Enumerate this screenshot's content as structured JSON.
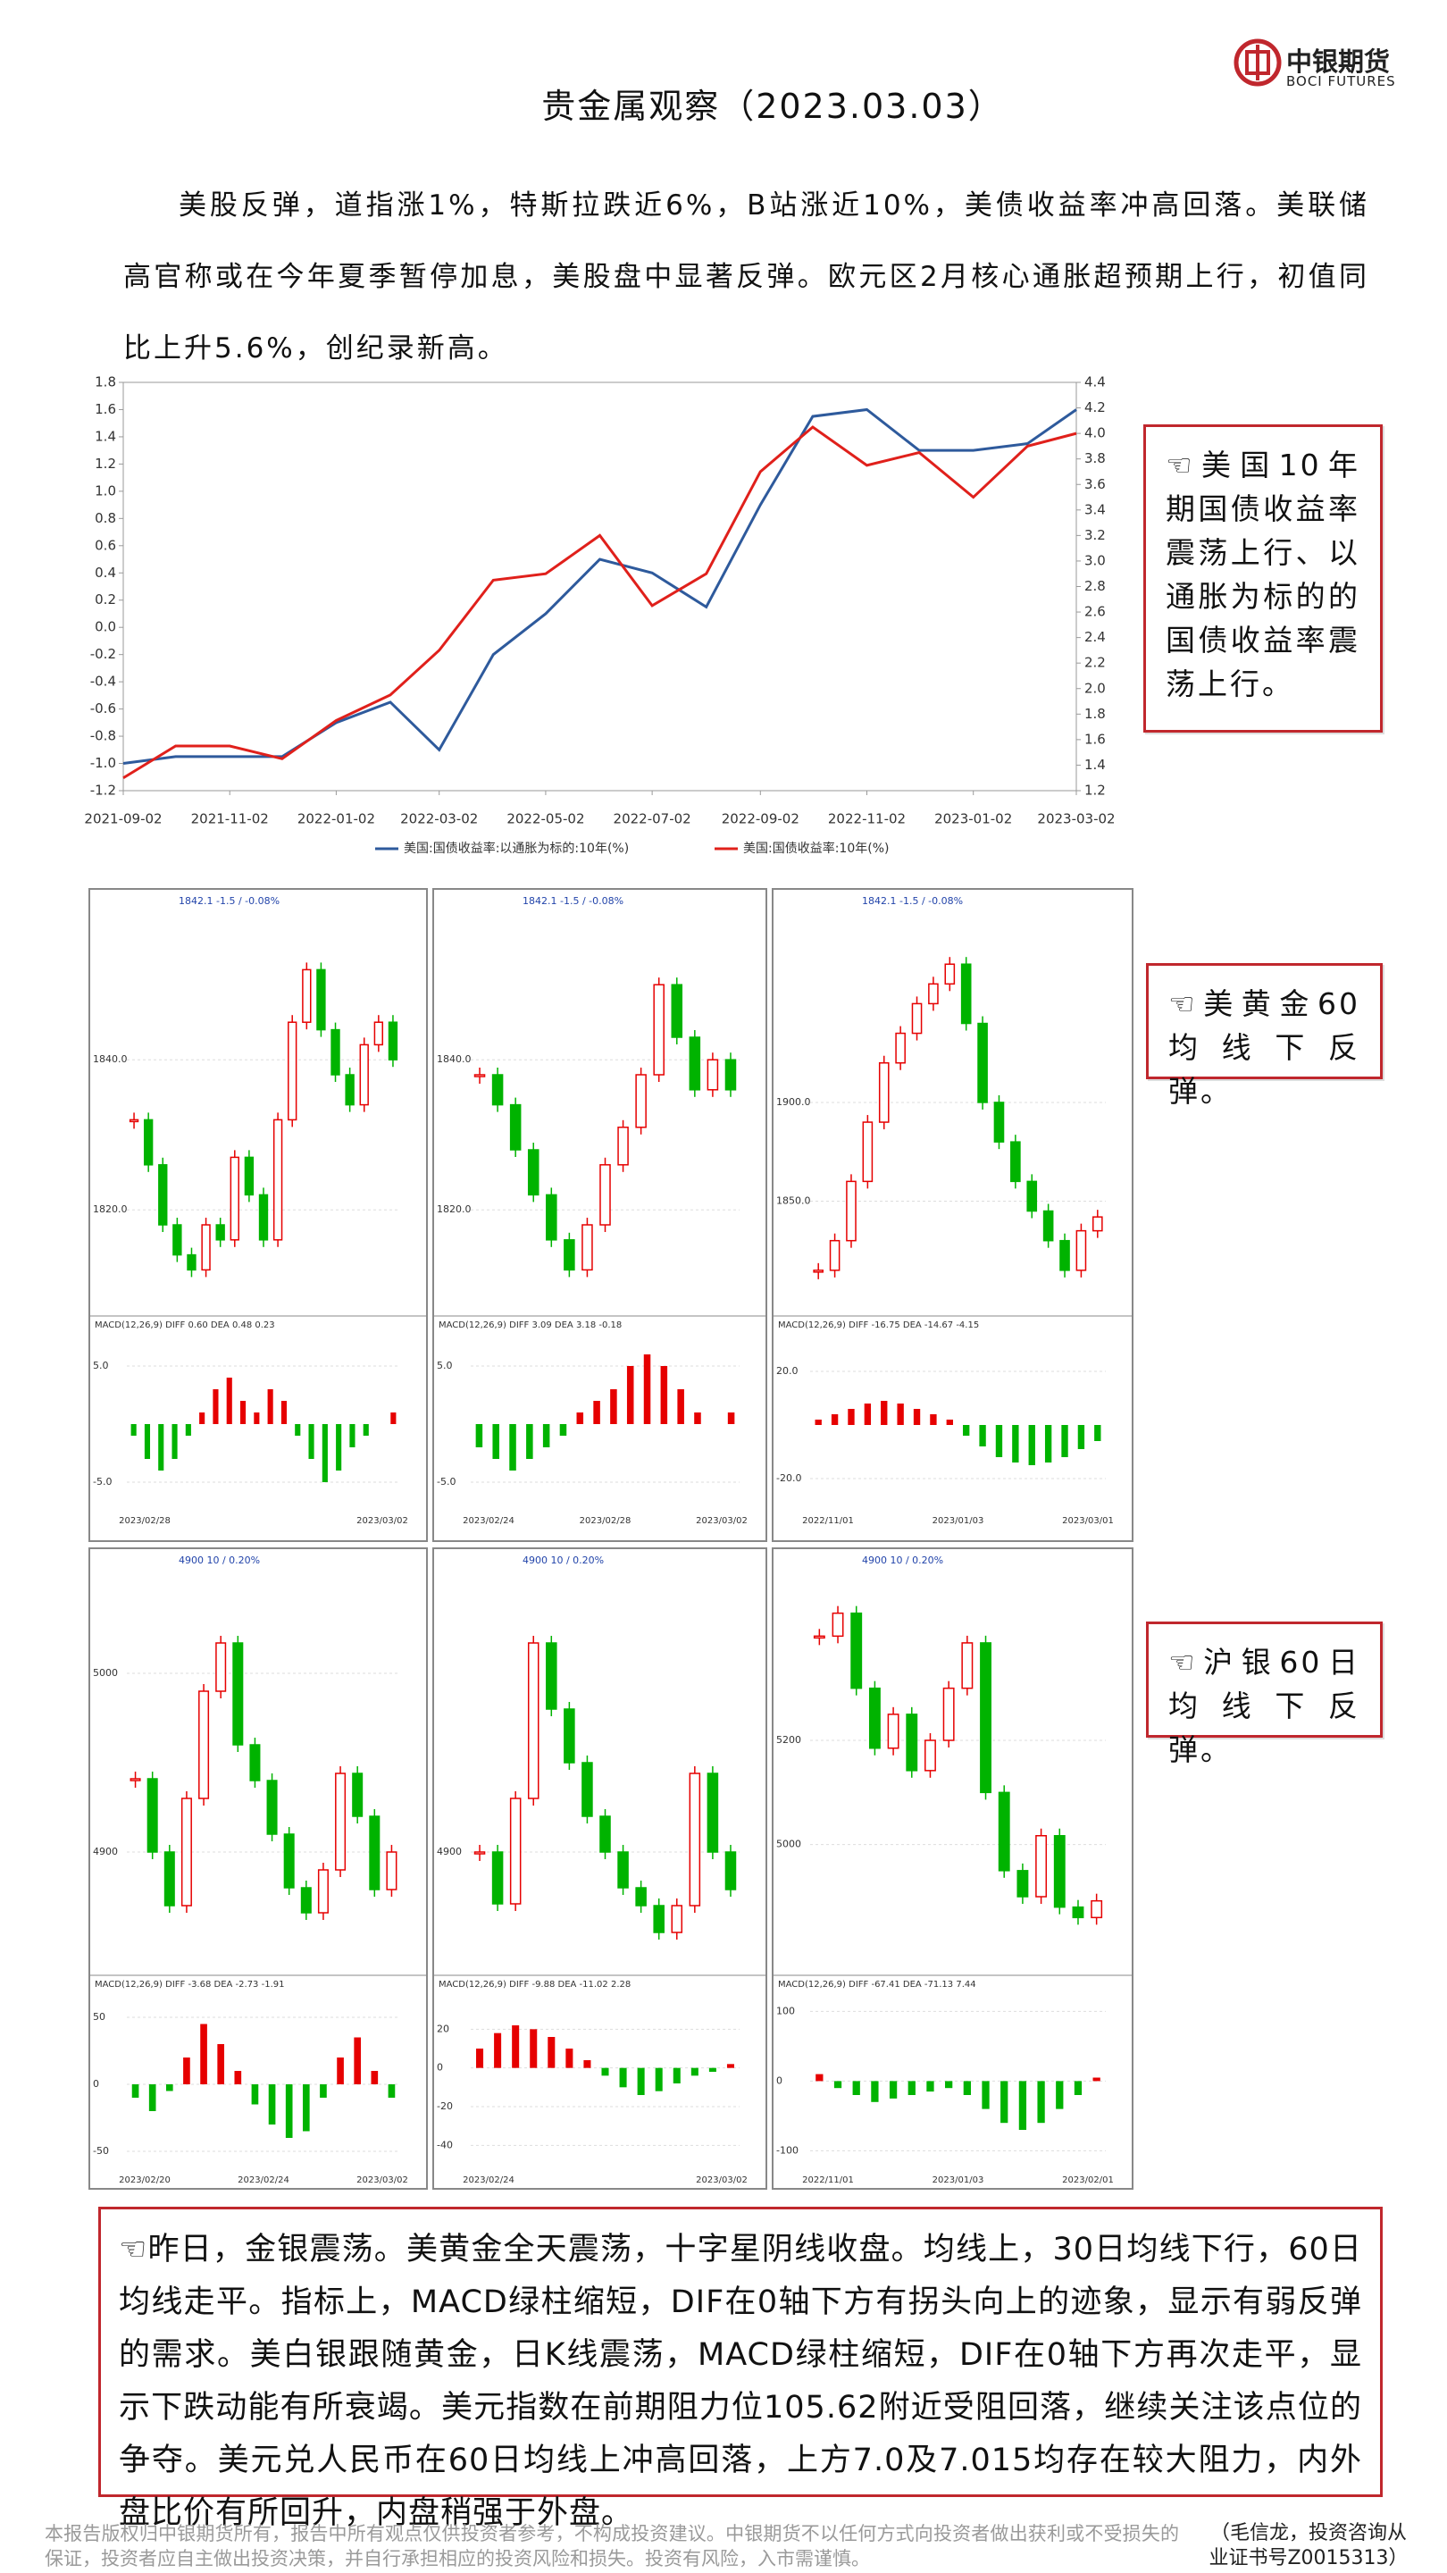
{
  "header": {
    "title": "贵金属观察（2023.03.03）",
    "logo_cn": "中银期货",
    "logo_en": "BOCI FUTURES"
  },
  "intro": "美股反弹，道指涨1%，特斯拉跌近6%，B站涨近10%，美债收益率冲高回落。美联储高官称或在今年夏季暂停加息，美股盘中显著反弹。欧元区2月核心通胀超预期上行，初值同比上升5.6%，创纪录新高。",
  "callouts": [
    "☜美国10年期国债收益率震荡上行、以通胀为标的的国债收益率震荡上行。",
    "☜美黄金60均线下反弹。",
    "☜沪银60日均线下反弹。"
  ],
  "chart_data": [
    {
      "type": "line",
      "x": [
        "2021-09-02",
        "2021-10-02",
        "2021-11-02",
        "2021-12-02",
        "2022-01-02",
        "2022-02-02",
        "2022-03-02",
        "2022-04-02",
        "2022-05-02",
        "2022-06-02",
        "2022-07-02",
        "2022-08-02",
        "2022-09-02",
        "2022-10-02",
        "2022-11-02",
        "2022-12-02",
        "2023-01-02",
        "2023-02-02",
        "2023-03-02"
      ],
      "series": [
        {
          "name": "美国:国债收益率:以通胀为标的:10年(%)",
          "color": "#2e5a9c",
          "values": [
            -1.0,
            -0.95,
            -0.95,
            -0.95,
            -0.7,
            -0.55,
            -0.9,
            -0.2,
            0.1,
            0.5,
            0.4,
            0.15,
            0.9,
            1.55,
            1.6,
            1.3,
            1.3,
            1.35,
            1.6
          ]
        },
        {
          "name": "美国:国债收益率:10年(%)",
          "color": "#e0201b",
          "axis": "y2",
          "values": [
            1.3,
            1.55,
            1.55,
            1.45,
            1.75,
            1.95,
            2.3,
            2.85,
            2.9,
            3.2,
            2.65,
            2.9,
            3.7,
            4.05,
            3.75,
            3.85,
            3.5,
            3.9,
            4.0
          ]
        }
      ],
      "xlim": [
        "2021-09-02",
        "2023-03-02"
      ],
      "xticks": [
        "2021-09-02",
        "2021-11-02",
        "2022-01-02",
        "2022-03-02",
        "2022-05-02",
        "2022-07-02",
        "2022-09-02",
        "2022-11-02",
        "2023-01-02",
        "2023-03-02"
      ],
      "ylim": [
        -1.2,
        1.8
      ],
      "yticks": [
        -1.2,
        {
          "value": -1.0,
          "label": "-1.0"
        },
        -0.8,
        -0.6,
        -0.4,
        -0.2,
        {
          "value": 0,
          "label": "0.0"
        },
        0.2,
        0.4,
        0.6,
        0.8,
        {
          "value": 1.0,
          "label": "1.0"
        },
        1.2,
        1.4,
        1.6,
        1.8
      ],
      "y2lim": [
        1.2,
        4.4
      ],
      "y2ticks": [
        1.2,
        1.4,
        1.6,
        1.8,
        {
          "value": 2.0,
          "label": "2.0"
        },
        2.2,
        2.4,
        2.6,
        2.8,
        {
          "value": 3.0,
          "label": "3.0"
        },
        3.2,
        3.4,
        3.6,
        3.8,
        {
          "value": 4.0,
          "label": "4.0"
        },
        4.2,
        4.4
      ]
    },
    {
      "type": "kline",
      "header": "1842.1  -1.5 / -0.08%",
      "up_color": "#e60000",
      "down_color": "#00b300",
      "ylim": [
        1808,
        1858
      ],
      "yticks": [
        {
          "value": 1840,
          "label": "1840.0"
        },
        {
          "value": 1820,
          "label": "1820.0"
        }
      ],
      "prices": [
        1832,
        1826,
        1818,
        1814,
        1812,
        1818,
        1816,
        1827,
        1822,
        1816,
        1832,
        1845,
        1852,
        1844,
        1838,
        1834,
        1842,
        1845,
        1840
      ],
      "macd_header": "MACD(12,26,9)  DIFF 0.60  DEA 0.48  0.23",
      "macd_ylim": [
        -7,
        8
      ],
      "macd_yticks": [
        {
          "value": 5,
          "label": "5.0"
        },
        {
          "value": -5,
          "label": "-5.0"
        }
      ],
      "macd": [
        -1,
        -3,
        -4,
        -3,
        -1,
        1,
        3,
        4,
        2,
        1,
        3,
        2,
        -1,
        -3,
        -5,
        -4,
        -2,
        -1,
        0,
        1
      ],
      "dates": [
        "2023/02/28",
        "2023/03/02"
      ]
    },
    {
      "type": "kline",
      "header": "1842.1  -1.5 / -0.08%",
      "up_color": "#e60000",
      "down_color": "#00b300",
      "ylim": [
        1808,
        1858
      ],
      "yticks": [
        {
          "value": 1840,
          "label": "1840.0"
        },
        {
          "value": 1820,
          "label": "1820.0"
        }
      ],
      "prices": [
        1838,
        1834,
        1828,
        1822,
        1816,
        1812,
        1818,
        1826,
        1831,
        1838,
        1850,
        1843,
        1836,
        1840,
        1836
      ],
      "macd_header": "MACD(12,26,9)  DIFF 3.09  DEA 3.18  -0.18",
      "macd_ylim": [
        -7,
        8
      ],
      "macd_yticks": [
        {
          "value": 5,
          "label": "5.0"
        },
        {
          "value": -5,
          "label": "-5.0"
        }
      ],
      "macd": [
        -2,
        -3,
        -4,
        -3,
        -2,
        -1,
        1,
        2,
        3,
        5,
        6,
        5,
        3,
        1,
        0,
        1
      ],
      "dates": [
        "2023/02/24",
        "2023/02/28",
        "2023/03/02"
      ]
    },
    {
      "type": "kline",
      "header": "1842.1  -1.5 / -0.08%",
      "up_color": "#e60000",
      "down_color": "#00b300",
      "ylim": [
        1800,
        1990
      ],
      "yticks": [
        {
          "value": 1900,
          "label": "1900.0"
        },
        {
          "value": 1850,
          "label": "1850.0"
        }
      ],
      "prices": [
        1815,
        1830,
        1860,
        1890,
        1920,
        1935,
        1950,
        1960,
        1970,
        1940,
        1900,
        1880,
        1860,
        1845,
        1830,
        1815,
        1835,
        1842
      ],
      "macd_header": "MACD(12,26,9)  DIFF -16.75  DEA -14.67  -4.15",
      "macd_ylim": [
        -30,
        35
      ],
      "macd_yticks": [
        {
          "value": 20,
          "label": "20.0"
        },
        {
          "value": -20,
          "label": "-20.0"
        }
      ],
      "macd": [
        2,
        4,
        6,
        8,
        9,
        8,
        6,
        4,
        2,
        -4,
        -8,
        -12,
        -14,
        -15,
        -14,
        -12,
        -9,
        -6
      ],
      "dates": [
        "2022/11/01",
        "2023/01/03",
        "2023/03/01"
      ]
    },
    {
      "type": "kline",
      "header": "4900  10 / 0.20%",
      "up_color": "#e60000",
      "down_color": "#00b300",
      "ylim": [
        4840,
        5050
      ],
      "yticks": [
        5000,
        4900
      ],
      "prices": [
        4941,
        4900,
        4870,
        4930,
        4990,
        5017,
        4960,
        4940,
        4910,
        4880,
        4866,
        4890,
        4944,
        4920,
        4879,
        4900
      ],
      "macd_header": "MACD(12,26,9)  DIFF -3.68  DEA -2.73  -1.91",
      "macd_ylim": [
        -60,
        70
      ],
      "macd_yticks": [
        50,
        0,
        -50
      ],
      "macd": [
        -10,
        -20,
        -5,
        20,
        45,
        30,
        10,
        -15,
        -30,
        -40,
        -35,
        -10,
        20,
        35,
        10,
        -10
      ],
      "dates": [
        "2023/02/20",
        "2023/02/24",
        "2023/03/02"
      ]
    },
    {
      "type": "kline",
      "header": "4900  10 / 0.20%",
      "up_color": "#e60000",
      "down_color": "#00b300",
      "ylim": [
        4840,
        5050
      ],
      "yticks": [
        4900
      ],
      "prices": [
        4900,
        4871,
        4930,
        5017,
        4980,
        4950,
        4920,
        4900,
        4880,
        4870,
        4855,
        4870,
        4944,
        4900,
        4879
      ],
      "macd_header": "MACD(12,26,9)  DIFF -9.88  DEA -11.02  2.28",
      "macd_ylim": [
        -50,
        40
      ],
      "macd_yticks": [
        20,
        0,
        -20,
        -40
      ],
      "macd": [
        10,
        18,
        22,
        20,
        16,
        10,
        4,
        -4,
        -10,
        -14,
        -12,
        -8,
        -4,
        -2,
        2
      ],
      "dates": [
        "2023/02/24",
        "2023/03/02"
      ]
    },
    {
      "type": "kline",
      "header": "4900  10 / 0.20%",
      "up_color": "#e60000",
      "down_color": "#00b300",
      "ylim": [
        4780,
        5500
      ],
      "yticks": [
        5200,
        5000
      ],
      "prices": [
        5400,
        5444,
        5300,
        5185,
        5250,
        5142,
        5200,
        5300,
        5387,
        5100,
        4950,
        4900,
        5017,
        4880,
        4860,
        4892
      ],
      "macd_header": "MACD(12,26,9)  DIFF -67.41  DEA -71.13  7.44",
      "macd_ylim": [
        -120,
        130
      ],
      "macd_yticks": [
        100,
        0,
        -100
      ],
      "macd": [
        10,
        -10,
        -20,
        -30,
        -25,
        -20,
        -15,
        -10,
        -20,
        -40,
        -60,
        -70,
        -60,
        -40,
        -20,
        5
      ],
      "dates": [
        "2022/11/01",
        "2023/01/03",
        "2023/02/01"
      ]
    }
  ],
  "summary": "☜昨日，金银震荡。美黄金全天震荡，十字星阴线收盘。均线上，30日均线下行，60日均线走平。指标上，MACD绿柱缩短，DIF在0轴下方有拐头向上的迹象，显示有弱反弹的需求。美白银跟随黄金，日K线震荡，MACD绿柱缩短，DIF在0轴下方再次走平，显示下跌动能有所衰竭。美元指数在前期阻力位105.62附近受阻回落，继续关注该点位的争夺。美元兑人民币在60日均线上冲高回落，上方7.0及7.015均存在较大阻力，内外盘比价有所回升，内盘稍强于外盘。",
  "footer": {
    "disclaimer": "本报告版权归中银期货所有，报告中所有观点仅供投资者参考，不构成投资建议。中银期货不以任何方式向投资者做出获利或不受损失的保证，投资者应自主做出投资决策，并自行承担相应的投资风险和损失。投资有风险，入市需谨慎。",
    "author": "（毛信龙，投资咨询从业证书号Z0015313）"
  }
}
